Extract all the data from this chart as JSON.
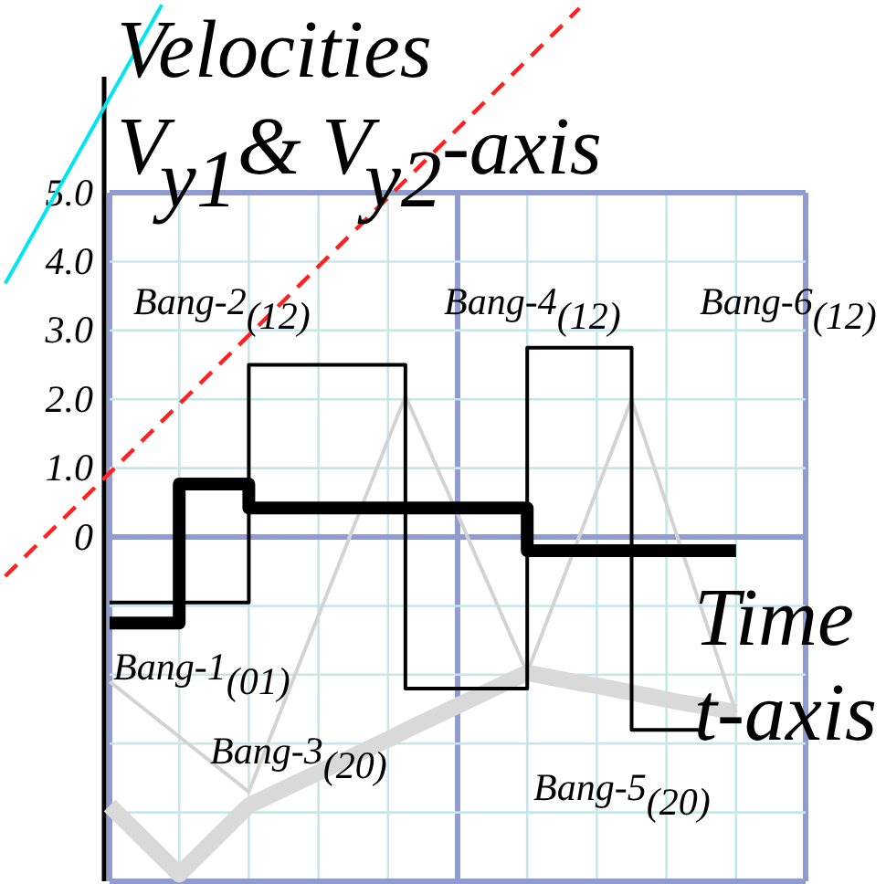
{
  "chart_data": {
    "type": "line",
    "ylabel": "Velocities\nV$_{y1}$& V$_{y2}$-axis",
    "xlabel": "Time\nt-axis",
    "categories": [
      null,
      null,
      null,
      null,
      null,
      null,
      null,
      null,
      null,
      null,
      null,
      null,
      null,
      null,
      null,
      null,
      null,
      null,
      null,
      null,
      null,
      null,
      null,
      null,
      null,
      null,
      null,
      null,
      null,
      null,
      null,
      null,
      null,
      null,
      null,
      null,
      null,
      null,
      null,
      null,
      null,
      null,
      null,
      null,
      null,
      null,
      null,
      null,
      null,
      null,
      null
    ],
    "ylim": [
      -5.04,
      7.8
    ],
    "yticks": [
      {
        "value": -5,
        "label": null
      },
      {
        "value": -4,
        "label": null
      },
      {
        "value": -3,
        "label": null
      },
      {
        "value": -2,
        "label": null
      },
      {
        "value": -1,
        "label": null
      },
      {
        "value": 0,
        "label": "0"
      },
      {
        "value": 1,
        "label": "1.0"
      },
      {
        "value": 2,
        "label": "2.0"
      },
      {
        "value": 3,
        "label": "3.0"
      },
      {
        "value": 4,
        "label": "4.0"
      },
      {
        "value": 5,
        "label": "5.0"
      }
    ],
    "grid": true,
    "tick_labels": "y",
    "series": [
      {
        "color": "#d9d9d9",
        "values": [
          null,
          null,
          null,
          null,
          null,
          null,
          -3.9,
          -4.15,
          -4.4,
          -4.65,
          -4.9,
          -4.65,
          -4.4,
          -4.15,
          -3.9,
          -3.78,
          -3.66,
          -3.54,
          -3.42,
          -3.3,
          -3.18,
          -3.06,
          -2.94,
          -2.81,
          -2.69,
          -2.57,
          -2.45,
          -2.33,
          -2.21,
          -2.09,
          -1.97,
          -2.02,
          -2.07,
          -2.12,
          -2.16,
          -2.21,
          -2.26,
          -2.31,
          -2.36,
          -2.41,
          -2.45,
          -2.5,
          -2.55,
          null,
          null,
          null,
          null,
          null,
          null,
          null,
          null
        ]
      },
      {
        "color": "#d3d3d3",
        "values": [
          null,
          null,
          null,
          null,
          null,
          null,
          -2.1,
          -2.3,
          -2.5,
          -2.7,
          -2.9,
          -3.1,
          -3.3,
          -3.5,
          -3.7,
          -3.06,
          -2.42,
          -1.78,
          -1.14,
          -0.51,
          0.13,
          0.77,
          1.41,
          2.05,
          1.48,
          0.9,
          0.33,
          -0.25,
          -0.82,
          -1.4,
          -1.97,
          -1.31,
          -0.65,
          0.01,
          0.68,
          1.34,
          2.0,
          1.24,
          0.48,
          -0.28,
          -1.03,
          -1.79,
          -2.55,
          null,
          null,
          null,
          null,
          null,
          null,
          null,
          null
        ]
      },
      {
        "type": "step",
        "color": "#000000",
        "values": [
          null,
          null,
          null,
          null,
          null,
          null,
          -0.95,
          -0.95,
          -0.95,
          -0.95,
          -0.95,
          -0.95,
          -0.95,
          -0.95,
          2.5,
          2.5,
          2.5,
          2.5,
          2.5,
          2.5,
          2.5,
          2.5,
          2.5,
          -2.2,
          -2.2,
          -2.2,
          -2.2,
          -2.2,
          -2.2,
          -2.2,
          2.75,
          2.75,
          2.75,
          2.75,
          2.75,
          2.75,
          -2.8,
          -2.8,
          -2.8,
          -2.8,
          -2.8,
          null,
          null,
          null,
          null,
          null,
          null,
          null,
          null,
          null,
          null
        ]
      },
      {
        "type": "step",
        "color": "#000000",
        "values": [
          null,
          null,
          null,
          null,
          null,
          null,
          -1.25,
          -1.25,
          -1.25,
          -1.25,
          0.77,
          0.77,
          0.77,
          0.77,
          0.42,
          0.42,
          0.42,
          0.42,
          0.42,
          0.42,
          0.42,
          0.42,
          0.42,
          0.42,
          0.42,
          0.42,
          0.42,
          0.42,
          0.42,
          0.42,
          -0.2,
          -0.2,
          -0.2,
          -0.2,
          -0.2,
          -0.2,
          -0.2,
          -0.2,
          -0.2,
          -0.2,
          -0.2,
          -0.2,
          -0.2,
          null,
          null,
          null,
          null,
          null,
          null,
          null,
          null
        ]
      },
      {
        "color": "#ff2020",
        "line_style": "dashed",
        "values": [
          -0.57,
          -0.32,
          -0.07,
          0.18,
          0.43,
          0.68,
          0.93,
          1.18,
          1.43,
          1.68,
          1.93,
          2.18,
          2.43,
          2.68,
          2.93,
          3.18,
          3.43,
          3.68,
          3.93,
          4.18,
          4.43,
          4.68,
          4.93,
          5.18,
          5.43,
          5.68,
          5.93,
          6.18,
          6.43,
          6.68,
          6.93,
          7.18,
          7.43,
          7.68,
          null,
          null,
          null,
          null,
          null,
          null,
          null,
          null,
          null,
          null,
          null,
          null,
          null,
          null,
          null,
          null,
          null
        ]
      },
      {
        "color": "#00e5ee",
        "values": [
          3.68,
          4.13,
          4.58,
          5.03,
          5.48,
          5.93,
          6.38,
          6.83,
          7.28,
          7.73,
          null,
          null,
          null,
          null,
          null,
          null,
          null,
          null,
          null,
          null,
          null,
          null,
          null,
          null,
          null,
          null,
          null,
          null,
          null,
          null,
          null,
          null,
          null,
          null,
          null,
          null,
          null,
          null,
          null,
          null,
          null,
          null,
          null,
          null,
          null,
          null,
          null,
          null,
          null,
          null,
          null
        ]
      }
    ],
    "annotations": [
      "Bang-1$_{(01)}$",
      "Bang-2$_{(12)}$",
      "Bang-3$_{(20)}$",
      "Bang-4$_{(12)}$",
      "Bang-5$_{(20)}$",
      "Bang-6$_{(12)}$"
    ]
  }
}
